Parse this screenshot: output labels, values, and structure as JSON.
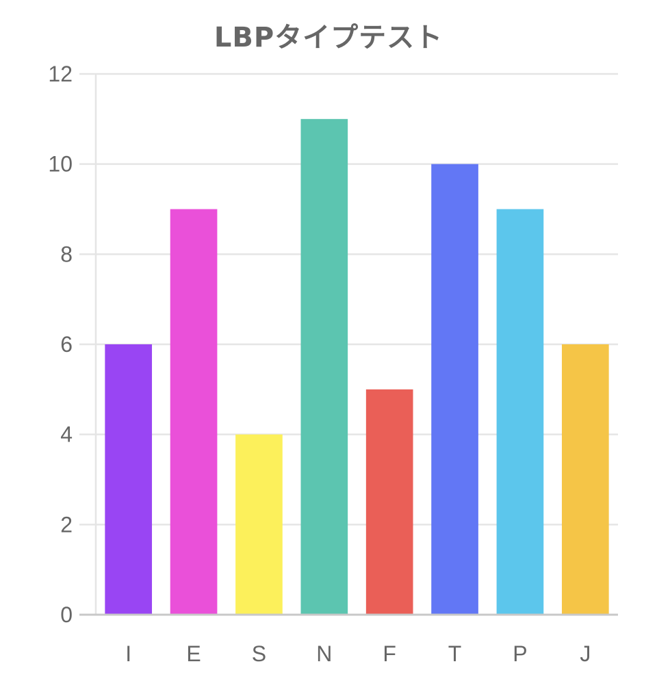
{
  "chart_data": {
    "type": "bar",
    "title": "LBPタイプテスト",
    "categories": [
      "I",
      "E",
      "S",
      "N",
      "F",
      "T",
      "P",
      "J"
    ],
    "values": [
      6,
      9,
      4,
      11,
      5,
      10,
      9,
      6
    ],
    "colors": [
      "#9945f3",
      "#ea50d9",
      "#fcf05b",
      "#5cc5b0",
      "#ea5f57",
      "#6277f5",
      "#5cc6ec",
      "#f5c547"
    ],
    "ylim": [
      0,
      12
    ],
    "yticks": [
      "0",
      "2",
      "4",
      "6",
      "8",
      "10",
      "12"
    ],
    "xlabel": "",
    "ylabel": "",
    "grid": true,
    "legend": "none",
    "gridline_color": "#e5e5e5",
    "axis_color": "#c8c8c8",
    "text_color": "#666666"
  }
}
